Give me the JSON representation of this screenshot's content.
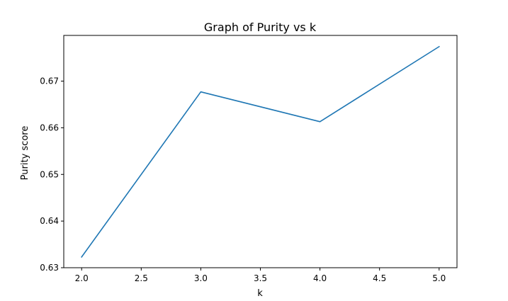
{
  "chart_data": {
    "type": "line",
    "title": "Graph of Purity vs k",
    "xlabel": "k",
    "ylabel": "Purity score",
    "x": [
      2.0,
      3.0,
      4.0,
      5.0
    ],
    "series": [
      {
        "values": [
          0.6323,
          0.6677,
          0.6613,
          0.6774
        ],
        "color": "#1f77b4"
      }
    ],
    "xlim": [
      1.85,
      5.15
    ],
    "ylim": [
      0.63,
      0.6798
    ],
    "xticks": [
      "2.0",
      "2.5",
      "3.0",
      "3.5",
      "4.0",
      "4.5",
      "5.0"
    ],
    "yticks": [
      "0.63",
      "0.64",
      "0.65",
      "0.66",
      "0.67"
    ],
    "grid": false,
    "legend": false
  }
}
